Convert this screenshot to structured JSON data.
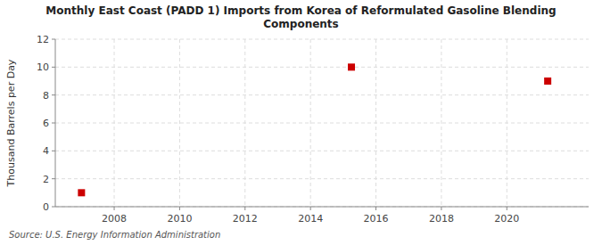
{
  "chart_data": {
    "type": "scatter",
    "title": "Monthly East Coast (PADD 1) Imports from Korea of Reformulated Gasoline Blending\nComponents",
    "ylabel": "Thousand Barrels per Day",
    "source": "Source: U.S. Energy Information Administration",
    "x": [
      2007.0,
      2015.25,
      2021.25
    ],
    "values": [
      1.0,
      10.0,
      9.0
    ],
    "color": "#cc0000",
    "marker": "square",
    "xlim": [
      2006.2,
      2022.5
    ],
    "ylim": [
      0,
      12
    ],
    "xticks": [
      2008,
      2010,
      2012,
      2014,
      2016,
      2018,
      2020
    ],
    "yticks": [
      0,
      2,
      4,
      6,
      8,
      10,
      12
    ],
    "grid": true
  }
}
